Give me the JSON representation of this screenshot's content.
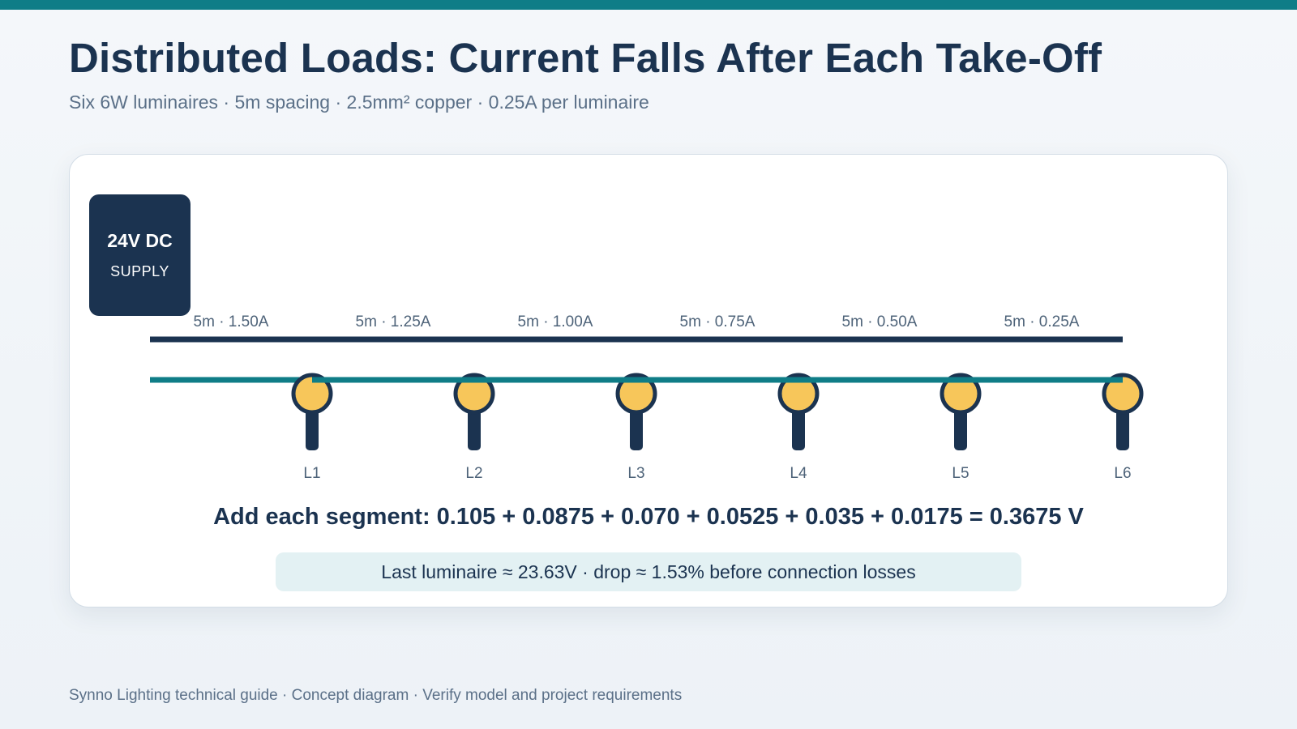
{
  "header": {
    "title": "Distributed Loads: Current Falls After Each Take-Off",
    "subtitle": "Six 6W luminaires · 5m spacing · 2.5mm² copper · 0.25A per luminaire"
  },
  "supply": {
    "voltage": "24V DC",
    "label": "SUPPLY"
  },
  "segments": [
    {
      "label": "5m · 1.50A"
    },
    {
      "label": "5m · 1.25A"
    },
    {
      "label": "5m · 1.00A"
    },
    {
      "label": "5m · 0.75A"
    },
    {
      "label": "5m · 0.50A"
    },
    {
      "label": "5m · 0.25A"
    }
  ],
  "luminaires": [
    {
      "label": "L1"
    },
    {
      "label": "L2"
    },
    {
      "label": "L3"
    },
    {
      "label": "L4"
    },
    {
      "label": "L5"
    },
    {
      "label": "L6"
    }
  ],
  "equation": "Add each segment: 0.105 + 0.0875 + 0.070 + 0.0525 + 0.035 + 0.0175 = 0.3675 V",
  "result": "Last luminaire ≈ 23.63V · drop ≈ 1.53% before connection losses",
  "footer": "Synno Lighting technical guide · Concept diagram · Verify model and project requirements",
  "colors": {
    "navy": "#1b3350",
    "teal": "#0f7d87",
    "lamp_fill": "#f7c65a",
    "result_bg": "#e3f1f3"
  }
}
